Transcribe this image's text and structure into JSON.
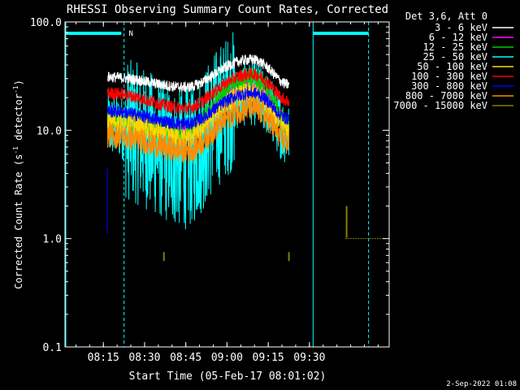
{
  "chart_data": {
    "type": "line",
    "title": "RHESSI Observing Summary Count Rates, Corrected",
    "xlabel": "Start Time (05-Feb-17 08:01:02)",
    "ylabel_main": "Corrected Count Rate (s",
    "ylabel_sup": "-1",
    "ylabel_tail": " detector",
    "ylabel_end": ")",
    "yscale": "log",
    "ylim": [
      0.1,
      100.0
    ],
    "xlim_minutes": [
      0,
      118
    ],
    "x_ticks": [
      "08:15",
      "08:30",
      "08:45",
      "09:00",
      "09:15",
      "09:30"
    ],
    "x_tick_minutes": [
      13.97,
      28.97,
      43.97,
      58.97,
      73.97,
      88.97
    ],
    "y_ticks": [
      "100.0",
      "10.0",
      "1.0",
      "0.1"
    ],
    "y_tick_values": [
      100,
      10,
      1,
      0.1
    ],
    "legend_title": "Det 3,6, Att 0",
    "legend_position": "right",
    "series": [
      {
        "name": "3 - 6 keV",
        "color": "#ffffff",
        "start": 31,
        "trough": 25,
        "peak": 45,
        "noise": 0.05
      },
      {
        "name": "6 - 12 keV",
        "color": "#ff00ff",
        "start": 14,
        "trough": 10,
        "peak": 26,
        "noise": 0.07
      },
      {
        "name": "12 - 25 keV",
        "color": "#00cc00",
        "start": 13,
        "trough": 9.5,
        "peak": 30,
        "noise": 0.1
      },
      {
        "name": "25 - 50 keV",
        "color": "#00ffff",
        "start": 11,
        "trough": 5.5,
        "peak": 22,
        "noise": 0.3
      },
      {
        "name": "50 - 100 keV",
        "color": "#ffd700",
        "start": 12,
        "trough": 8.5,
        "peak": 22,
        "noise": 0.1
      },
      {
        "name": "100 - 300 keV",
        "color": "#ff0000",
        "start": 22,
        "trough": 16,
        "peak": 33,
        "noise": 0.06
      },
      {
        "name": "300 - 800 keV",
        "color": "#0000ff",
        "start": 15,
        "trough": 11.5,
        "peak": 22,
        "noise": 0.06
      },
      {
        "name": "800 - 7000 keV",
        "color": "#ff8c00",
        "start": 9,
        "trough": 6.5,
        "peak": 16,
        "noise": 0.12
      },
      {
        "name": "7000 - 15000 keV",
        "color": "#808000",
        "start": 0,
        "trough": 0,
        "peak": 0,
        "noise": 0
      }
    ],
    "attenuator_label": "N",
    "shading_color": "#00ffff",
    "timestamp": "2-Sep-2022 01:08"
  }
}
